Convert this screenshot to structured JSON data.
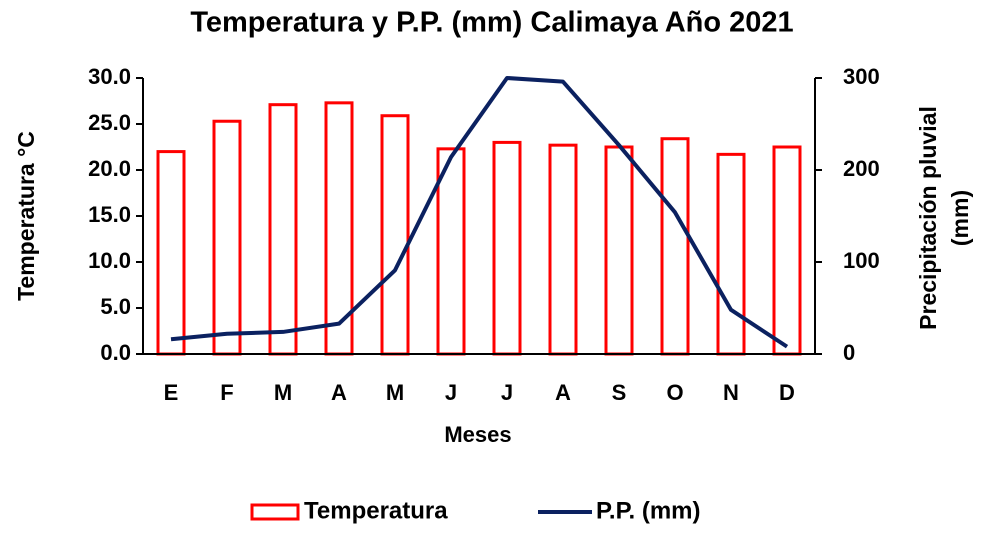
{
  "chart_data": {
    "type": "bar_line",
    "title": "Temperatura y P.P. (mm) Calimaya Año 2021",
    "xlabel": "Meses",
    "ylabel": "Temperatura °C",
    "y2label": [
      "Precipitación pluvial",
      "(mm)"
    ],
    "categories": [
      "E",
      "F",
      "M",
      "A",
      "M",
      "J",
      "J",
      "A",
      "S",
      "O",
      "N",
      "D"
    ],
    "series": [
      {
        "name": "Temperatura",
        "type": "bar",
        "color": "#ff0000",
        "values": [
          22.0,
          25.3,
          27.1,
          27.3,
          25.9,
          22.3,
          23.0,
          22.7,
          22.5,
          23.4,
          21.7,
          22.5
        ]
      },
      {
        "name": "P.P. (mm)",
        "type": "line",
        "axis": "y2",
        "color": "#0b2160",
        "values": [
          16,
          22,
          24,
          33,
          91,
          214,
          300,
          296,
          227,
          154,
          48,
          8
        ]
      }
    ],
    "ylim": [
      0,
      30
    ],
    "yticks": [
      {
        "value": 0,
        "label": "0.0"
      },
      {
        "value": 5,
        "label": "5.0"
      },
      {
        "value": 10,
        "label": "10.0"
      },
      {
        "value": 15,
        "label": "15.0"
      },
      {
        "value": 20,
        "label": "20.0"
      },
      {
        "value": 25,
        "label": "25.0"
      },
      {
        "value": 30,
        "label": "30.0"
      }
    ],
    "y2lim": [
      0,
      300
    ],
    "y2ticks": [
      0,
      100,
      200,
      300
    ],
    "legend": "bottom"
  }
}
